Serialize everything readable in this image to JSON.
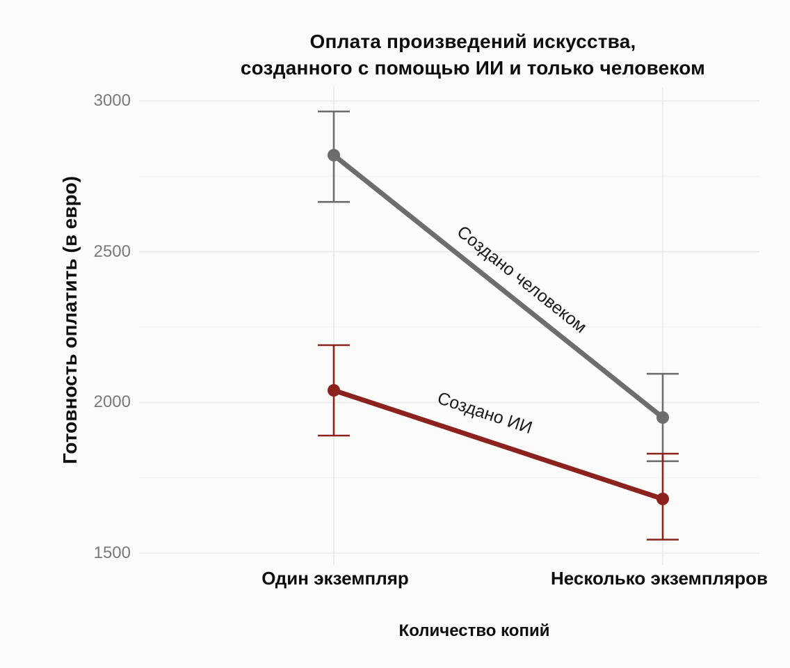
{
  "chart_data": {
    "type": "line",
    "title": "Оплата произведений искусства, созданного с помощью ИИ и только человеком",
    "title_lines": [
      "Оплата произведений искусства,",
      "созданного с помощью ИИ и только человеком"
    ],
    "xlabel": "Количество копий",
    "ylabel": "Готовность оплатить (в евро)",
    "categories": [
      "Один экземпляр",
      "Несколько экземпляров"
    ],
    "y_ticks": [
      1500,
      2000,
      2500,
      3000
    ],
    "y_minor_grid": [
      1750,
      2250,
      2750
    ],
    "ylim": [
      1460,
      3045
    ],
    "grid": true,
    "legend_position": "direct labels along lines",
    "series": [
      {
        "name": "Создано человеком",
        "color": "#6d6d6d",
        "values": [
          2820,
          1950
        ],
        "ci_lower": [
          2665,
          1805
        ],
        "ci_upper": [
          2965,
          2095
        ]
      },
      {
        "name": "Создано ИИ",
        "color": "#8b221e",
        "values": [
          2040,
          1680
        ],
        "ci_lower": [
          1890,
          1545
        ],
        "ci_upper": [
          2190,
          1830
        ]
      }
    ]
  },
  "colors": {
    "background": "#fbfbfa",
    "grid_major": "#e9e9e9",
    "grid_minor": "#f3f3f2",
    "tick_label": "#7a7a7a",
    "text": "#0d0d0d"
  }
}
